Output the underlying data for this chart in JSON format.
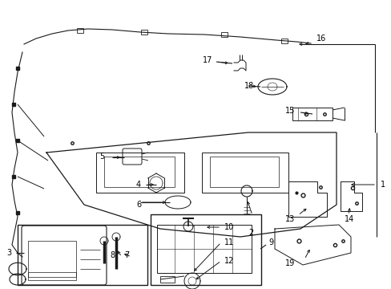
{
  "bg_color": "#ffffff",
  "lc": "#1a1a1a",
  "fig_width": 4.89,
  "fig_height": 3.6,
  "dpi": 100
}
